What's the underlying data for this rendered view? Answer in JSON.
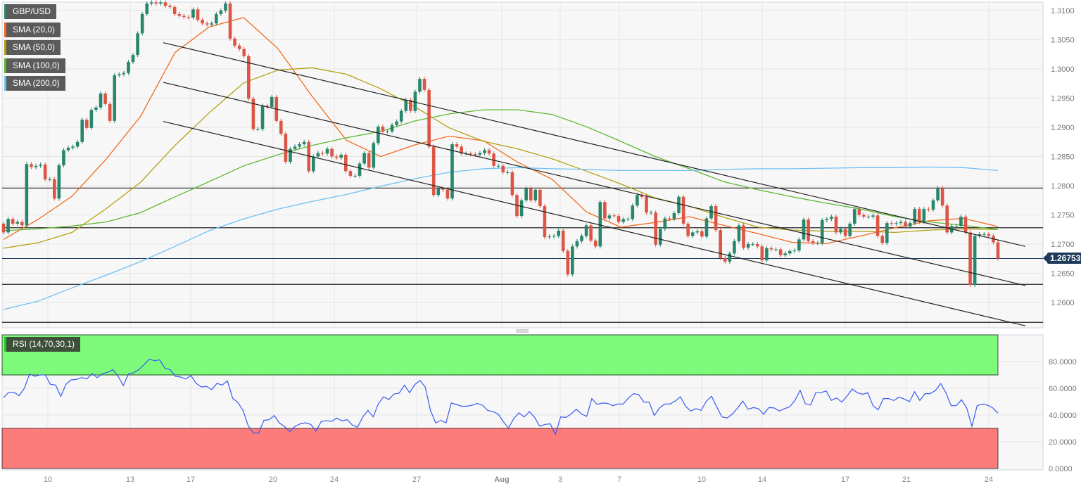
{
  "legend": {
    "symbol": {
      "label": "GBP/USD",
      "color": "#2a8a6f"
    },
    "sma20": {
      "label": "SMA (20,0)",
      "color": "#f26b1d"
    },
    "sma50": {
      "label": "SMA (50,0)",
      "color": "#b5a011"
    },
    "sma100": {
      "label": "SMA (100,0)",
      "color": "#5cb82e"
    },
    "sma200": {
      "label": "SMA (200,0)",
      "color": "#6ec0f5"
    },
    "rsi": {
      "label": "RSI (14,70,30,1)",
      "color": "#22cc22"
    }
  },
  "current_price": "1.26753",
  "chart_data": [
    {
      "type": "candlestick",
      "symbol": "GBP/USD",
      "price_ticks": [
        "1.3100",
        "1.3050",
        "1.3000",
        "1.2950",
        "1.2900",
        "1.2850",
        "1.2800",
        "1.2750",
        "1.2700",
        "1.2650",
        "1.2600"
      ],
      "date_ticks": [
        "10",
        "13",
        "17",
        "20",
        "24",
        "27",
        "Aug",
        "3",
        "7",
        "10",
        "14",
        "17",
        "21",
        "24"
      ],
      "up_color": "#27866b",
      "down_color": "#dc5545",
      "first_open": 1.2735,
      "close": [
        1.272,
        1.2743,
        1.2735,
        1.2738,
        1.2732,
        1.2837,
        1.2832,
        1.2834,
        1.2836,
        1.2811,
        1.2811,
        1.2778,
        1.2835,
        1.2861,
        1.2865,
        1.2867,
        1.2875,
        1.2913,
        1.2899,
        1.293,
        1.2934,
        1.2958,
        1.294,
        1.2911,
        1.2989,
        1.2991,
        1.2993,
        1.3012,
        1.3024,
        1.3061,
        1.3094,
        1.3112,
        1.3114,
        1.3112,
        1.3114,
        1.3108,
        1.3106,
        1.3094,
        1.3091,
        1.3089,
        1.3088,
        1.3102,
        1.3084,
        1.3078,
        1.3076,
        1.3078,
        1.3094,
        1.31,
        1.3112,
        1.3052,
        1.304,
        1.3034,
        1.3022,
        1.2949,
        1.2897,
        1.2897,
        1.2937,
        1.2935,
        1.2952,
        1.2911,
        1.2889,
        1.2841,
        1.2863,
        1.2867,
        1.2871,
        1.2875,
        1.2825,
        1.285,
        1.2856,
        1.2855,
        1.2863,
        1.285,
        1.2848,
        1.2853,
        1.2825,
        1.2817,
        1.2817,
        1.2838,
        1.2856,
        1.2831,
        1.2873,
        1.2901,
        1.2893,
        1.2893,
        1.2904,
        1.291,
        1.2928,
        1.2947,
        1.2928,
        1.2961,
        1.2983,
        1.2964,
        1.2867,
        1.2784,
        1.2795,
        1.2793,
        1.2778,
        1.2871,
        1.2867,
        1.2855,
        1.2855,
        1.2854,
        1.2853,
        1.2856,
        1.2861,
        1.2855,
        1.2834,
        1.2834,
        1.2823,
        1.2823,
        1.2784,
        1.2748,
        1.2775,
        1.2795,
        1.2775,
        1.2793,
        1.2765,
        1.2712,
        1.2713,
        1.2714,
        1.2723,
        1.2688,
        1.2648,
        1.2696,
        1.2705,
        1.2714,
        1.2732,
        1.2706,
        1.2696,
        1.2772,
        1.2744,
        1.2749,
        1.2748,
        1.2738,
        1.2743,
        1.2743,
        1.2766,
        1.2784,
        1.2781,
        1.2754,
        1.2754,
        1.2699,
        1.2726,
        1.2744,
        1.2743,
        1.2753,
        1.2781,
        1.2735,
        1.2714,
        1.272,
        1.2722,
        1.2713,
        1.2744,
        1.2765,
        1.2724,
        1.2676,
        1.267,
        1.2684,
        1.2705,
        1.2732,
        1.2694,
        1.27,
        1.27,
        1.2696,
        1.2672,
        1.2693,
        1.2691,
        1.2691,
        1.2681,
        1.2684,
        1.2688,
        1.2689,
        1.2708,
        1.2742,
        1.2705,
        1.2702,
        1.2702,
        1.2741,
        1.2743,
        1.2747,
        1.272,
        1.2726,
        1.2714,
        1.2735,
        1.276,
        1.275,
        1.2747,
        1.2747,
        1.2749,
        1.2714,
        1.2702,
        1.2736,
        1.2735,
        1.2736,
        1.2738,
        1.273,
        1.2736,
        1.276,
        1.2738,
        1.276,
        1.2759,
        1.2775,
        1.2796,
        1.2766,
        1.272,
        1.2731,
        1.2731,
        1.2747,
        1.272,
        1.263,
        1.2714,
        1.2717,
        1.2717,
        1.2714,
        1.2703,
        1.26753
      ],
      "sma": {
        "sma20": [
          1.2708,
          1.2742,
          1.2782,
          1.2846,
          1.2919,
          1.3028,
          1.3072,
          1.3088,
          1.3035,
          1.2953,
          1.2878,
          1.285,
          1.287,
          1.2885,
          1.2877,
          1.284,
          1.2811,
          1.2755,
          1.2729,
          1.2737,
          1.2747,
          1.2732,
          1.2718,
          1.2703,
          1.2701,
          1.2714,
          1.2728,
          1.274,
          1.2744,
          1.273
        ],
        "sma50": [
          1.2693,
          1.2702,
          1.272,
          1.2761,
          1.2806,
          1.2869,
          1.2925,
          1.2976,
          1.2998,
          1.3002,
          1.2991,
          1.2966,
          1.2935,
          1.2899,
          1.2876,
          1.2863,
          1.2846,
          1.2825,
          1.2803,
          1.2779,
          1.2765,
          1.2746,
          1.2729,
          1.2724,
          1.2722,
          1.2722,
          1.272,
          1.2724,
          1.2726,
          1.2725
        ],
        "sma100": [
          1.2723,
          1.2726,
          1.2731,
          1.2738,
          1.2754,
          1.2781,
          1.2807,
          1.2834,
          1.2853,
          1.2869,
          1.2882,
          1.2893,
          1.2911,
          1.2923,
          1.293,
          1.293,
          1.2922,
          1.2901,
          1.2876,
          1.285,
          1.2829,
          1.2807,
          1.2793,
          1.2781,
          1.277,
          1.276,
          1.2747,
          1.2738,
          1.2732,
          1.2725
        ],
        "sma200": [
          1.2588,
          1.2602,
          1.2625,
          1.2647,
          1.267,
          1.2696,
          1.2723,
          1.2743,
          1.276,
          1.2773,
          1.2785,
          1.2799,
          1.2812,
          1.2823,
          1.2829,
          1.2831,
          1.2829,
          1.2828,
          1.2826,
          1.2826,
          1.2826,
          1.2828,
          1.2829,
          1.2829,
          1.283,
          1.2831,
          1.2831,
          1.2832,
          1.2831,
          1.2826
        ]
      },
      "channel_lines": [
        {
          "start": 1.3045,
          "end": 1.2696
        },
        {
          "start": 1.2977,
          "end": 1.2629
        },
        {
          "start": 1.291,
          "end": 1.256
        }
      ],
      "horizontal_levels": [
        1.2796,
        1.2728,
        1.2631,
        1.2566
      ],
      "current_price_level": 1.26753,
      "grid": true
    },
    {
      "type": "line",
      "indicator": "RSI (14,70,30,1)",
      "ylim": [
        0,
        100
      ],
      "overbought": 70,
      "oversold": 30,
      "overbought_color": "#7dfa7a",
      "oversold_color": "#fc7b7b",
      "line_color": "#3b5bf0",
      "rsi_ticks": [
        "80.0000",
        "60.0000",
        "40.0000",
        "20.0000",
        "0.0000"
      ],
      "values": [
        53,
        57,
        57,
        54.5,
        60,
        70.7,
        69,
        70,
        70,
        63,
        62.5,
        54,
        63,
        66.3,
        66.7,
        68,
        67,
        71,
        68,
        71,
        72,
        74,
        69,
        62,
        70.7,
        71.6,
        74,
        77.7,
        81.8,
        80.7,
        81.2,
        75,
        74,
        69,
        68.4,
        67,
        69.5,
        63.7,
        61,
        61.4,
        59,
        63.7,
        62.5,
        65.6,
        52.6,
        49.5,
        43.5,
        32,
        26.5,
        26.5,
        36,
        36.5,
        39.6,
        34,
        31.3,
        27.6,
        31.6,
        33.4,
        34.2,
        33,
        28,
        35,
        35.9,
        35.2,
        37.8,
        35.5,
        36.5,
        32.5,
        30.9,
        38.6,
        43.5,
        38.6,
        48.5,
        53.7,
        51.6,
        55.7,
        56.4,
        62.3,
        56.7,
        62.8,
        65.8,
        61,
        43.5,
        34.2,
        36,
        34.2,
        49,
        47.9,
        46.6,
        46.6,
        47.3,
        48.7,
        47.3,
        43.5,
        42.6,
        40.8,
        35,
        30.3,
        37.3,
        41.7,
        38.6,
        42.6,
        38.2,
        31.6,
        33,
        33.4,
        25.6,
        38.6,
        38.2,
        40.8,
        44.3,
        40.8,
        39,
        52.3,
        47.9,
        49,
        48.7,
        47,
        48.2,
        48.2,
        52.6,
        56,
        55.3,
        49.7,
        49.7,
        39.6,
        45.3,
        48.2,
        48.2,
        50.4,
        53.7,
        46.6,
        43,
        44.8,
        43.5,
        50.4,
        54,
        46,
        38.6,
        37.8,
        40.8,
        45.3,
        50.4,
        44.3,
        45.6,
        44.8,
        40.6,
        45.6,
        45.3,
        43,
        44.8,
        46.1,
        50.9,
        58.4,
        48.5,
        47.5,
        56.7,
        56.7,
        58.1,
        51,
        52.8,
        49.7,
        54.1,
        59.4,
        56.7,
        55.5,
        56.7,
        47,
        43.9,
        52.3,
        52.3,
        50.9,
        53.3,
        52,
        50,
        57.5,
        50.9,
        56,
        56,
        58.4,
        63.6,
        56.7,
        47,
        47,
        51.4,
        45.3,
        31.6,
        47,
        48.2,
        47.3,
        45.3,
        41.4
      ]
    }
  ]
}
